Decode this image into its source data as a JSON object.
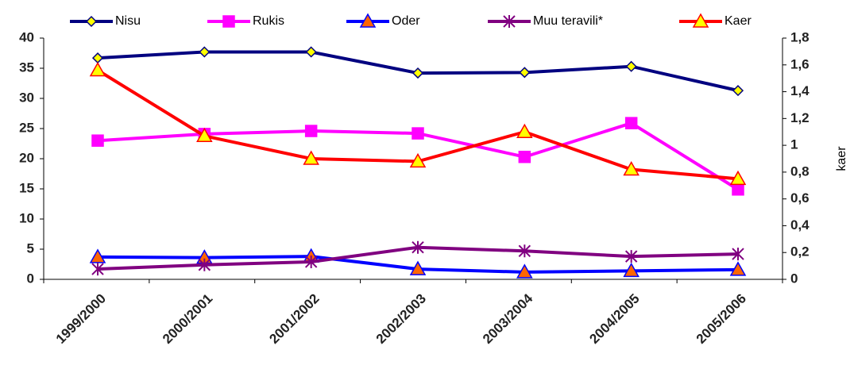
{
  "chart_data": {
    "type": "line",
    "categories": [
      "1999/2000",
      "2000/2001",
      "2001/2002",
      "2002/2003",
      "2003/2004",
      "2004/2005",
      "2005/2006"
    ],
    "y2label": "kaer",
    "ylim": [
      0,
      40
    ],
    "yticks": [
      0,
      5,
      10,
      15,
      20,
      25,
      30,
      35,
      40
    ],
    "y2lim": [
      0,
      1.8
    ],
    "y2ticks": [
      0,
      {
        "value": 0.2,
        "label": "0,2"
      },
      {
        "value": 0.4,
        "label": "0,4"
      },
      {
        "value": 0.6,
        "label": "0,6"
      },
      {
        "value": 0.8,
        "label": "0,8"
      },
      1,
      {
        "value": 1.2,
        "label": "1,2"
      },
      {
        "value": 1.4,
        "label": "1,4"
      },
      {
        "value": 1.6,
        "label": "1,6"
      },
      {
        "value": 1.8,
        "label": "1,8"
      }
    ],
    "grid": false,
    "legend": "top",
    "series": [
      {
        "name": "Nisu",
        "color": "#000080",
        "marker": "diamond",
        "marker_fill": "#ffff00",
        "values": [
          36.7,
          37.7,
          37.7,
          34.2,
          34.3,
          35.3,
          31.3
        ]
      },
      {
        "name": "Rukis",
        "color": "#ff00ff",
        "marker": "square",
        "marker_fill": "#ff00ff",
        "values": [
          23.0,
          24.1,
          24.6,
          24.2,
          20.3,
          25.9,
          14.9
        ]
      },
      {
        "name": "Oder",
        "color": "#0000ff",
        "marker": "triangle",
        "marker_fill": "#ff6600",
        "values": [
          3.7,
          3.6,
          3.8,
          1.7,
          1.2,
          1.4,
          1.6
        ]
      },
      {
        "name": "Muu teravili*",
        "color": "#800080",
        "marker": "star",
        "marker_fill": "#800080",
        "values": [
          1.7,
          2.4,
          2.9,
          5.3,
          4.7,
          3.8,
          4.2
        ]
      },
      {
        "name": "Kaer",
        "color": "#ff0000",
        "marker": "triangle",
        "marker_fill": "#ffff00",
        "axis": "y2",
        "values": [
          1.56,
          1.07,
          0.9,
          0.88,
          1.1,
          0.82,
          0.75
        ]
      }
    ]
  }
}
